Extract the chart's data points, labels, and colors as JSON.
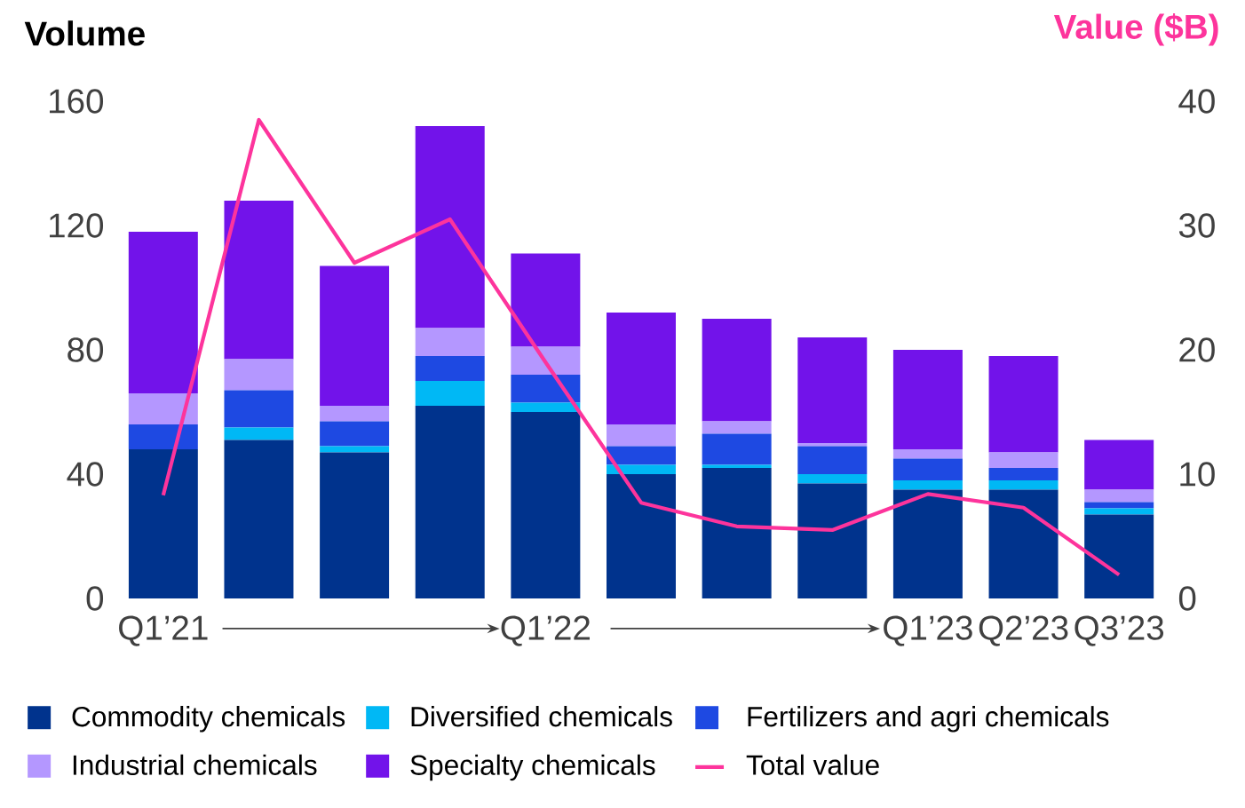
{
  "chart_data": {
    "type": "bar",
    "stacked": true,
    "ylabel": "Volume",
    "y2label": "Value ($B)",
    "categories": [
      "Q1’21",
      null,
      null,
      null,
      "Q1’22",
      null,
      null,
      null,
      "Q1’23",
      "Q2’23",
      "Q3’23"
    ],
    "series": [
      {
        "name": "Commodity chemicals",
        "color": "#00338d",
        "values": [
          48,
          51,
          47,
          62,
          60,
          40,
          42,
          37,
          35,
          35,
          27
        ]
      },
      {
        "name": "Diversified chemicals",
        "color": "#00b8f5",
        "values": [
          0,
          4,
          2,
          8,
          3,
          3,
          1,
          3,
          3,
          3,
          2
        ]
      },
      {
        "name": "Fertilizers and agri chemicals",
        "color": "#1e49e2",
        "values": [
          8,
          12,
          8,
          8,
          9,
          6,
          10,
          9,
          7,
          4,
          2
        ]
      },
      {
        "name": "Industrial chemicals",
        "color": "#b497ff",
        "values": [
          10,
          10,
          5,
          9,
          9,
          7,
          4,
          1,
          3,
          5,
          4
        ]
      },
      {
        "name": "Specialty chemicals",
        "color": "#7213ea",
        "values": [
          52,
          51,
          45,
          65,
          30,
          36,
          33,
          34,
          32,
          31,
          16
        ]
      },
      {
        "name": "Total value",
        "type": "line",
        "axis": "y2",
        "color": "#fd349c",
        "values": [
          8.3,
          38.5,
          27,
          30.5,
          19,
          7.7,
          5.8,
          5.5,
          8.4,
          7.3,
          1.9
        ]
      }
    ],
    "ylim": [
      0,
      160
    ],
    "yticks": [
      0,
      40,
      80,
      120,
      160
    ],
    "y2lim": [
      0,
      40
    ],
    "y2ticks": [
      0,
      10,
      20,
      30,
      40
    ],
    "legend": "bottom",
    "grid": false
  }
}
